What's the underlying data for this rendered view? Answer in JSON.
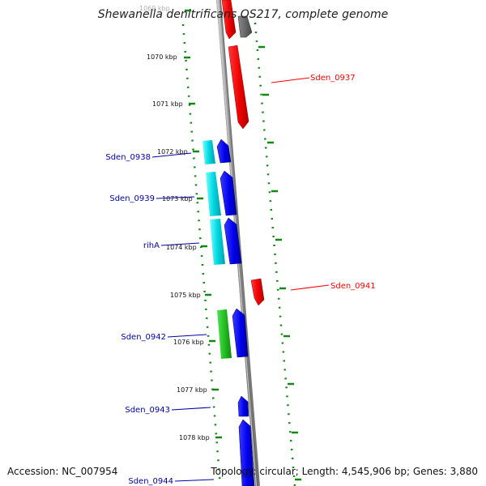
{
  "title": "Shewanella denitrificans OS217, complete genome",
  "footer": {
    "accession": "Accession: NC_007954",
    "summary": "Topology: circular; Length: 4,545,906 bp; Genes: 3,880"
  },
  "scale": {
    "ticks": [
      "1069 kbp",
      "1070 kbp",
      "1071 kbp",
      "1072 kbp",
      "1073 kbp",
      "1074 kbp",
      "1075 kbp",
      "1076 kbp",
      "1077 kbp",
      "1078 kbp"
    ]
  },
  "genes": [
    {
      "label": "Sden_0937",
      "strand": "reverse",
      "color": "#ff0000"
    },
    {
      "label": "Sden_0938",
      "strand": "forward",
      "color": "#0000ee"
    },
    {
      "label": "Sden_0939",
      "strand": "forward",
      "color": "#0000ee"
    },
    {
      "label": "rihA",
      "strand": "forward",
      "color": "#0000ee"
    },
    {
      "label": "Sden_0941",
      "strand": "reverse",
      "color": "#ff0000"
    },
    {
      "label": "Sden_0942",
      "strand": "forward",
      "color": "#0000ee"
    },
    {
      "label": "Sden_0943",
      "strand": "forward",
      "color": "#0000ee"
    },
    {
      "label": "Sden_0944",
      "strand": "forward",
      "color": "#0000ee"
    }
  ],
  "colors": {
    "forward_gene": "#0000ee",
    "reverse_gene": "#ff0000",
    "cds_cyan": "#00e0e0",
    "cds_green": "#22c022",
    "tick_marks": "#118811",
    "backbone": "#888888",
    "unnamed_gene": "#666666"
  }
}
